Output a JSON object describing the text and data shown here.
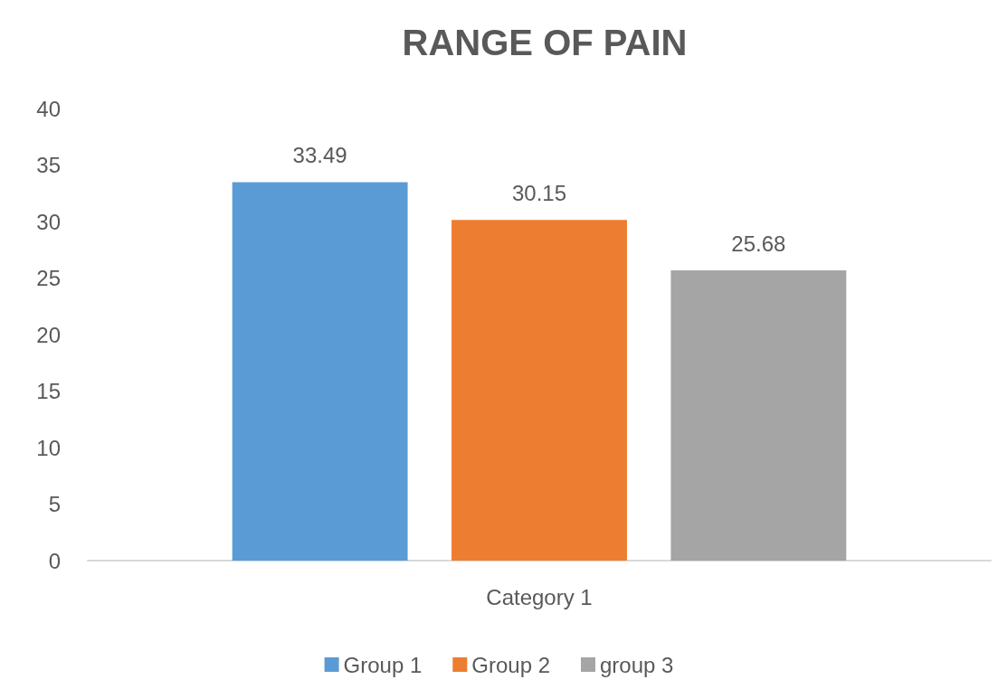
{
  "chart_data": {
    "type": "bar",
    "title": "RANGE OF PAIN",
    "categories": [
      "Category 1"
    ],
    "series": [
      {
        "name": "Group 1",
        "color": "#5b9bd5",
        "values": [
          33.49
        ]
      },
      {
        "name": "Group 2",
        "color": "#ed7d31",
        "values": [
          30.15
        ]
      },
      {
        "name": "group 3",
        "color": "#a5a5a5",
        "values": [
          25.68
        ]
      }
    ],
    "ylim": [
      0,
      40
    ],
    "yticks": [
      0,
      5,
      10,
      15,
      20,
      25,
      30,
      35,
      40
    ],
    "grid": false,
    "legend": "bottom",
    "data_labels": true
  }
}
